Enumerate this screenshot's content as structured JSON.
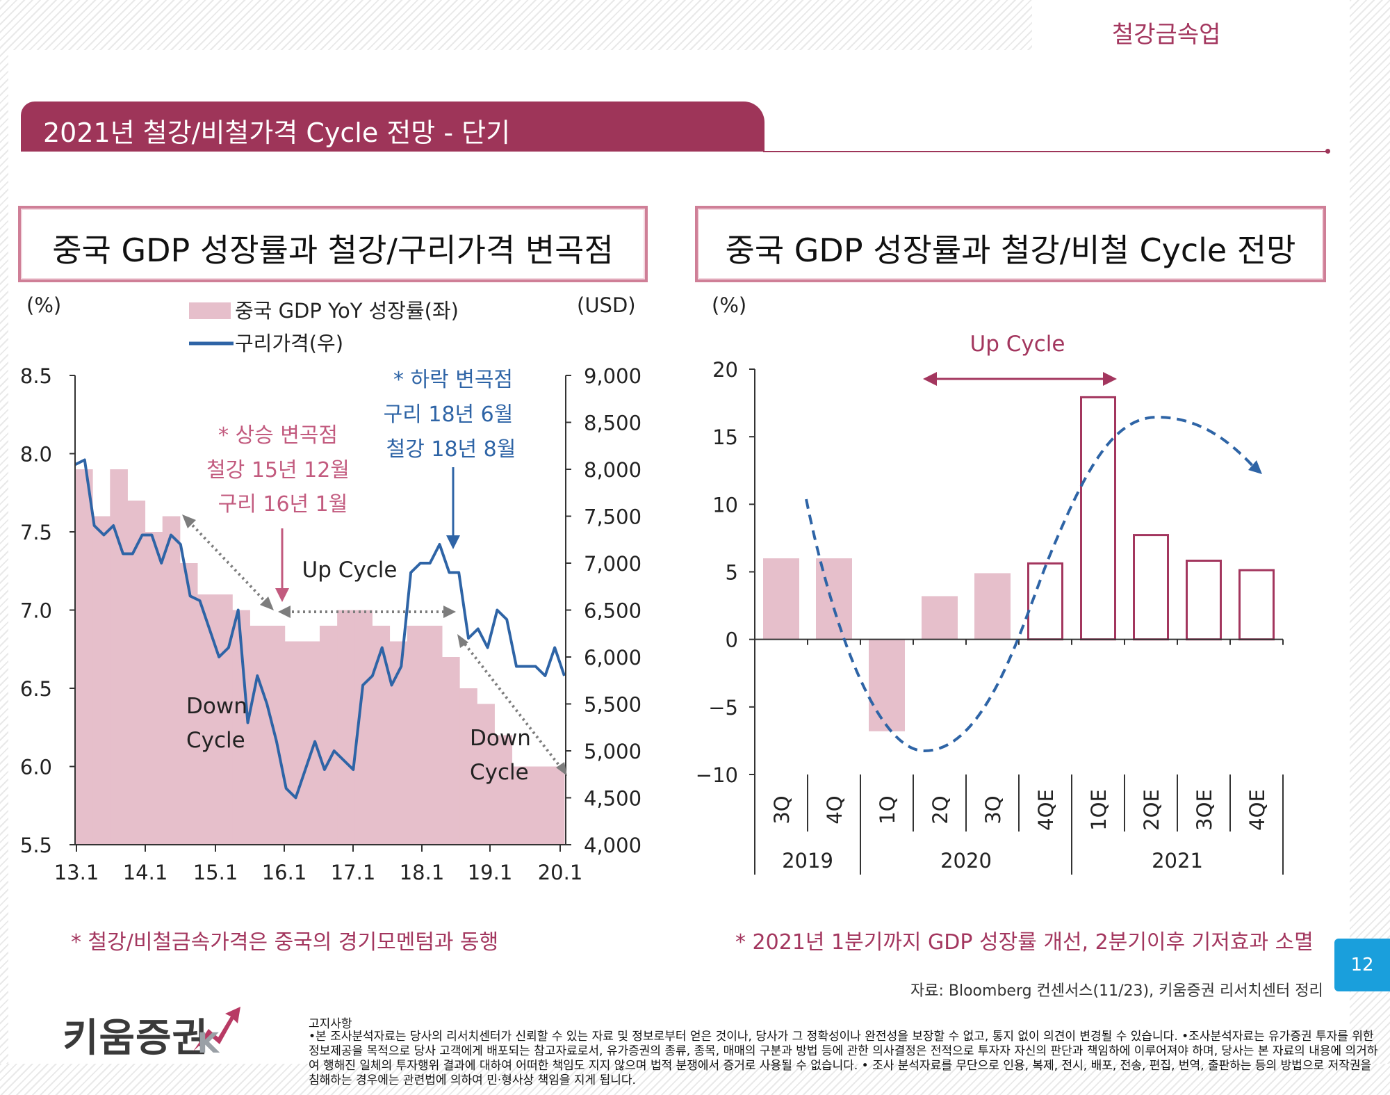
{
  "header": {
    "section_label": "철강금속업",
    "title": "2021년 철강/비철가격 Cycle 전망 - 단기"
  },
  "colors": {
    "accent": "#9e3559",
    "bar_pink": "#e6bfcb",
    "copper_blue": "#2e64a6",
    "page_blue": "#1a9fdc"
  },
  "chart_data": [
    {
      "type": "bar",
      "title": "중국 GDP 성장률과 철강/구리가격 변곡점",
      "left_unit": "(%)",
      "right_unit": "(USD)",
      "legend": {
        "bar": "중국 GDP YoY 성장률(좌)",
        "line": "구리가격(우)",
        "placement": "top-center"
      },
      "x_ticks": [
        "13.1",
        "14.1",
        "15.1",
        "16.1",
        "17.1",
        "18.1",
        "19.1",
        "20.1"
      ],
      "y_left_ticks": [
        "8.5",
        "8.0",
        "7.5",
        "7.0",
        "6.5",
        "6.0",
        "5.5"
      ],
      "y_left_range": [
        5.5,
        8.5
      ],
      "y_right_ticks": [
        "9,000",
        "8,500",
        "8,000",
        "7,500",
        "7,000",
        "6,500",
        "6,000",
        "5,500",
        "5,000",
        "4,500",
        "4,000"
      ],
      "y_right_range": [
        4000,
        9000
      ],
      "series": [
        {
          "name": "중국 GDP YoY 성장률(좌)",
          "kind": "bar",
          "values": [
            7.9,
            7.6,
            7.9,
            7.7,
            7.5,
            7.6,
            7.3,
            7.1,
            7.1,
            7.0,
            6.9,
            6.9,
            6.8,
            6.8,
            6.9,
            7.0,
            7.0,
            6.9,
            6.8,
            6.9,
            6.9,
            6.7,
            6.5,
            6.4,
            6.2,
            6.0,
            6.0,
            6.0
          ]
        },
        {
          "name": "구리가격(우)",
          "kind": "line",
          "values": [
            8050,
            8100,
            7400,
            7300,
            7400,
            7100,
            7100,
            7300,
            7300,
            7000,
            7300,
            7200,
            6650,
            6600,
            6300,
            6000,
            6100,
            6500,
            5300,
            5800,
            5500,
            5100,
            4600,
            4500,
            4800,
            5100,
            4800,
            5000,
            4900,
            4800,
            5700,
            5800,
            6100,
            5700,
            5900,
            6900,
            7000,
            7000,
            7200,
            6900,
            6900,
            6200,
            6300,
            6100,
            6500,
            6400,
            5900,
            5900,
            5900,
            5800,
            6100,
            5800
          ]
        }
      ],
      "annotations": {
        "up_turn_title": "* 상승 변곡점",
        "up_turn_steel": "철강 15년 12월",
        "up_turn_copper": "구리 16년 1월",
        "down_turn_title": "* 하락 변곡점",
        "down_turn_copper": "구리 18년 6월",
        "down_turn_steel": "철강 18년 8월",
        "up_cycle": "Up Cycle",
        "down_cycle_1a": "Down",
        "down_cycle_1b": "Cycle",
        "down_cycle_2a": "Down",
        "down_cycle_2b": "Cycle"
      },
      "caption": "* 철강/비철금속가격은 중국의 경기모멘텀과 동행"
    },
    {
      "type": "bar",
      "title": "중국 GDP 성장률과 철강/비철 Cycle 전망",
      "y_unit": "(%)",
      "y_ticks": [
        "20",
        "15",
        "10",
        "5",
        "0",
        "−5",
        "−10"
      ],
      "y_range": [
        -10,
        20
      ],
      "categories": [
        "3Q",
        "4Q",
        "1Q",
        "2Q",
        "3Q",
        "4QE",
        "1QE",
        "2QE",
        "3QE",
        "4QE"
      ],
      "years": [
        "2019",
        "2020",
        "2021"
      ],
      "values": [
        6.0,
        6.0,
        -6.8,
        3.2,
        4.9,
        5.7,
        18.0,
        7.8,
        5.9,
        5.2
      ],
      "estimate_flags": [
        false,
        false,
        false,
        false,
        false,
        true,
        true,
        true,
        true,
        true
      ],
      "annotations": {
        "up_cycle": "Up Cycle"
      },
      "caption": "* 2021년 1분기까지 GDP 성장률 개선, 2분기이후 기저효과 소멸"
    }
  ],
  "footer": {
    "source": "자료: Bloomberg 컨센서스(11/23), 키움증권 리서치센터 정리",
    "page_number": "12",
    "logo": "키움증권",
    "notice_title": "고지사항",
    "notice_body": "•본 조사분석자료는 당사의 리서치센터가 신뢰할 수 있는 자료 및 정보로부터 얻은 것이나, 당사가 그 정확성이나 완전성을 보장할 수 없고, 통지 없이 의견이 변경될 수 있습니다. •조사분석자료는 유가증권 투자를 위한 정보제공을 목적으로 당사 고객에게 배포되는 참고자료로서, 유가증권의 종류, 종목, 매매의 구분과 방법 등에 관한 의사결정은 전적으로 투자자 자신의 판단과 책임하에 이루어져야 하며, 당사는 본 자료의 내용에 의거하여 행해진 일체의 투자행위 결과에 대하여 어떠한 책임도 지지 않으며 법적 분쟁에서 증거로 사용될 수 없습니다. • 조사 분석자료를 무단으로 인용, 복제, 전시, 배포, 전송, 편집, 번역, 출판하는 등의 방법으로 저작권을 침해하는 경우에는 관련법에 의하여 민·형사상 책임을 지게 됩니다."
  }
}
